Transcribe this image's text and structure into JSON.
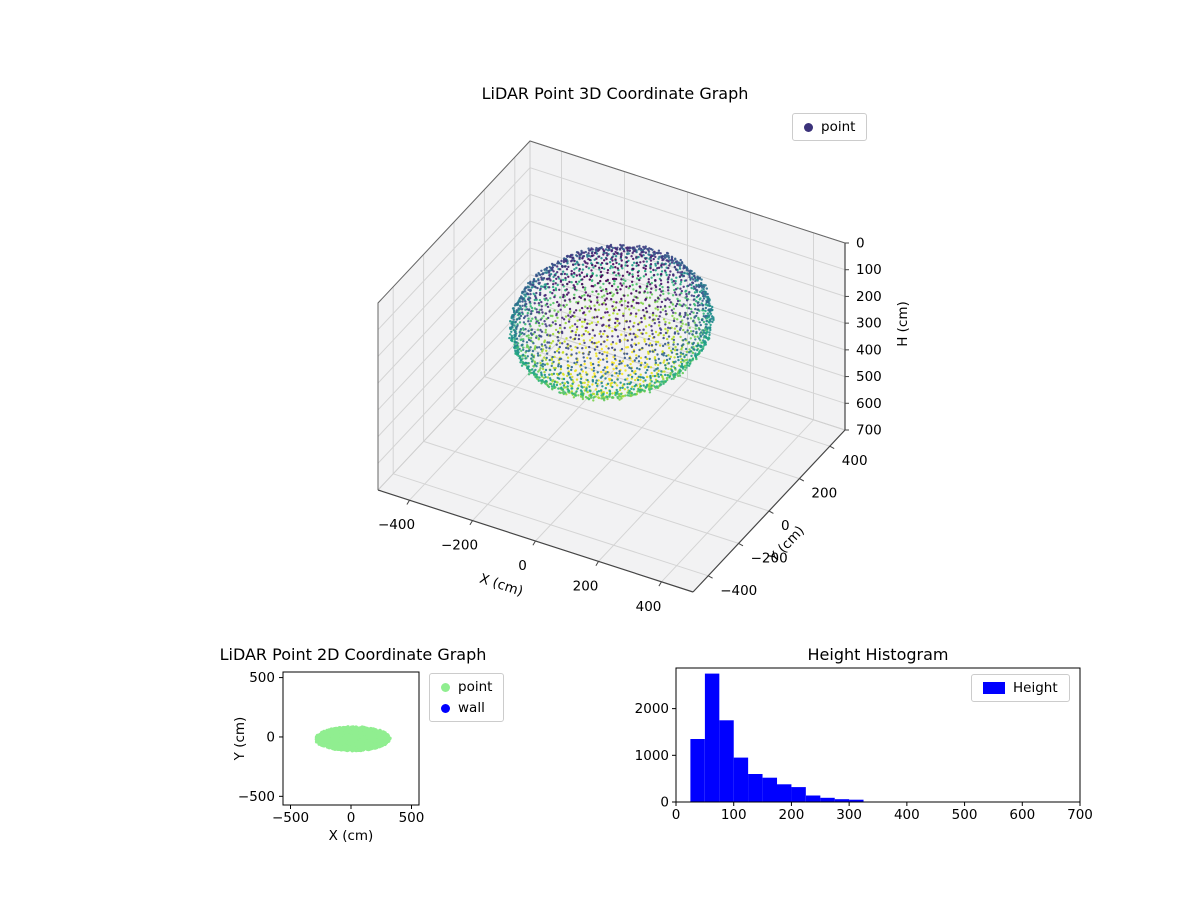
{
  "style": {
    "background": "#ffffff",
    "text_color": "#000000",
    "axes_edge": "#000000",
    "pane3d": "#f2f2f3",
    "grid3d": "#d4d4d4"
  },
  "chart_data": [
    {
      "type": "scatter3d",
      "title": "LiDAR Point 3D Coordinate Graph",
      "xlabel": "X (cm)",
      "ylabel": "Y (cm)",
      "zlabel": "H (cm)",
      "xlim": [
        -500,
        500
      ],
      "ylim": [
        -500,
        500
      ],
      "zlim": [
        0,
        700
      ],
      "zaxis_inverted": true,
      "xticks": [
        -400,
        -200,
        0,
        200,
        400
      ],
      "yticks": [
        -400,
        -200,
        0,
        200,
        400
      ],
      "zticks": [
        0,
        100,
        200,
        300,
        400,
        500,
        600,
        700
      ],
      "view": {
        "elev": 30,
        "azim": -60
      },
      "legend": [
        {
          "label": "point",
          "marker_color": "#3b327a"
        }
      ],
      "series": [
        {
          "name": "point",
          "colormap": "viridis",
          "color_by": "height",
          "point_cloud": {
            "shape": "ellipsoid-shell",
            "center_xyh": [
              0,
              0,
              185
            ],
            "radii_xyh": [
              270,
              350,
              160
            ],
            "h_range": [
              25,
              345
            ],
            "rings": 38,
            "points_per_ring_max": 110,
            "jitter_cm": 6,
            "seed": 42
          }
        }
      ],
      "colormap_stops": [
        [
          0.0,
          "#440154"
        ],
        [
          0.1,
          "#482475"
        ],
        [
          0.2,
          "#414487"
        ],
        [
          0.3,
          "#355f8d"
        ],
        [
          0.4,
          "#2a788e"
        ],
        [
          0.5,
          "#21918c"
        ],
        [
          0.6,
          "#22a884"
        ],
        [
          0.7,
          "#44bf70"
        ],
        [
          0.8,
          "#7ad151"
        ],
        [
          0.9,
          "#bddf26"
        ],
        [
          1.0,
          "#fde725"
        ]
      ]
    },
    {
      "type": "scatter",
      "title": "LiDAR Point 2D Coordinate Graph",
      "xlabel": "X (cm)",
      "ylabel": "Y (cm)",
      "xlim": [
        -562,
        562
      ],
      "ylim": [
        -573,
        547
      ],
      "xticks": [
        -500,
        0,
        500
      ],
      "yticks": [
        -500,
        0,
        500
      ],
      "legend": [
        {
          "label": "point",
          "marker_color": "#90ee90"
        },
        {
          "label": "wall",
          "marker_color": "#0000ff"
        }
      ],
      "series": [
        {
          "name": "point",
          "color": "#90ee90",
          "region": {
            "shape": "filled-ellipse",
            "center": [
              15,
              -15
            ],
            "radii": [
              305,
              100
            ],
            "n_points": 1500,
            "seed": 7
          }
        },
        {
          "name": "wall",
          "color": "#0000ff",
          "points": []
        }
      ]
    },
    {
      "type": "histogram",
      "title": "Height Histogram",
      "legend": [
        {
          "label": "Height",
          "patch_color": "#0000ff"
        }
      ],
      "bar_color": "#0000ff",
      "bin_start": 25,
      "bin_width": 25,
      "counts": [
        1350,
        2750,
        1750,
        950,
        600,
        520,
        380,
        320,
        140,
        90,
        60,
        50
      ],
      "xlim": [
        0,
        700
      ],
      "ylim": [
        0,
        2870
      ],
      "xticks": [
        0,
        100,
        200,
        300,
        400,
        500,
        600,
        700
      ],
      "yticks": [
        0,
        1000,
        2000
      ]
    }
  ]
}
